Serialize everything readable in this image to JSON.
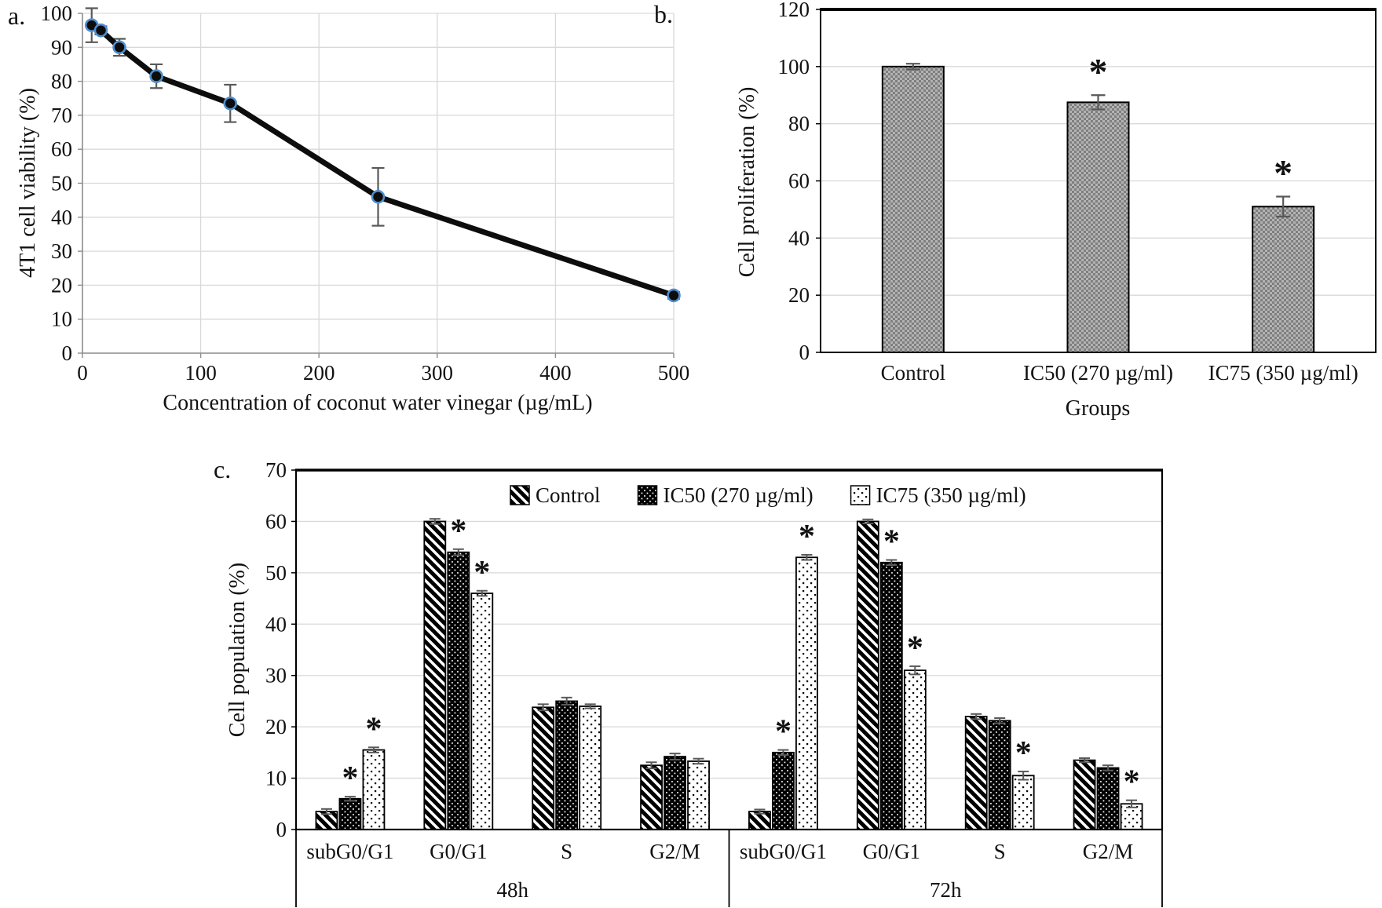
{
  "colors": {
    "line": "#0d0d0d",
    "marker_fill": "#0d0d0d",
    "marker_ring": "#4f8fd0",
    "error_bar": "#595959",
    "gridline": "#d9d9d9",
    "axis_line": "#8c8c8c",
    "text": "#111111",
    "bar_border": "#000000",
    "gray_bar_light": "#b3b3b3",
    "gray_bar_dark": "#7f7f7f"
  },
  "chart_data": [
    {
      "panel": "a.",
      "type": "line",
      "xlabel": "Concentration of coconut water vinegar (µg/mL)",
      "ylabel": "4T1 cell viability (%)",
      "xlim": [
        0,
        500
      ],
      "ylim": [
        0,
        100
      ],
      "xticks": [
        0,
        100,
        200,
        300,
        400,
        500
      ],
      "ytick_step": 10,
      "grid": true,
      "x": [
        7.8,
        15.6,
        31.25,
        62.5,
        125,
        250,
        500
      ],
      "y": [
        96.5,
        95,
        90,
        81.5,
        73.5,
        46,
        17
      ],
      "yerr": [
        5,
        1.2,
        2.5,
        3.5,
        5.5,
        8.5,
        1
      ]
    },
    {
      "panel": "b.",
      "type": "bar",
      "xlabel": "Groups",
      "ylabel": "Cell proliferation (%)",
      "ylim": [
        0,
        120
      ],
      "ytick_step": 20,
      "grid": true,
      "categories": [
        "Control",
        "IC50 (270 µg/ml)",
        "IC75 (350 µg/ml)"
      ],
      "values": [
        100,
        87.5,
        51
      ],
      "errors": [
        1,
        2.5,
        3.5
      ],
      "significant": [
        false,
        true,
        true
      ],
      "sig_marker": "*",
      "bar_pattern": "gray-weave"
    },
    {
      "panel": "c.",
      "type": "grouped-bar",
      "ylabel": "Cell population (%)",
      "ylim": [
        0,
        70
      ],
      "ytick_step": 10,
      "grid": true,
      "legend_position": "top-inside",
      "sig_marker": "*",
      "group_labels": [
        "subG0/G1",
        "G0/G1",
        "S",
        "G2/M",
        "subG0/G1",
        "G0/G1",
        "S",
        "G2/M"
      ],
      "time_groups": [
        {
          "label": "48h",
          "from": 0,
          "to": 3
        },
        {
          "label": "72h",
          "from": 4,
          "to": 7
        }
      ],
      "series": [
        {
          "name": "Control",
          "pattern": "diagonal-stripes",
          "values": [
            3.5,
            60,
            23.8,
            12.5,
            3.5,
            60,
            22,
            13.5
          ],
          "errors": [
            0.5,
            0.5,
            0.6,
            0.6,
            0.4,
            0.4,
            0.5,
            0.4
          ],
          "significant": [
            false,
            false,
            false,
            false,
            false,
            false,
            false,
            false
          ]
        },
        {
          "name": "IC50 (270 µg/ml)",
          "pattern": "black-with-white-dots",
          "values": [
            6,
            54,
            25,
            14.2,
            15,
            52,
            21.2,
            12
          ],
          "errors": [
            0.4,
            0.6,
            0.7,
            0.6,
            0.5,
            0.5,
            0.5,
            0.5
          ],
          "significant": [
            true,
            true,
            false,
            false,
            true,
            true,
            false,
            false
          ]
        },
        {
          "name": "IC75 (350 µg/ml)",
          "pattern": "white-with-black-dots",
          "values": [
            15.5,
            46,
            24,
            13.3,
            53,
            31,
            10.5,
            5
          ],
          "errors": [
            0.5,
            0.5,
            0.4,
            0.5,
            0.5,
            0.8,
            0.8,
            0.7
          ],
          "significant": [
            true,
            true,
            false,
            false,
            true,
            true,
            true,
            true
          ]
        }
      ]
    }
  ]
}
